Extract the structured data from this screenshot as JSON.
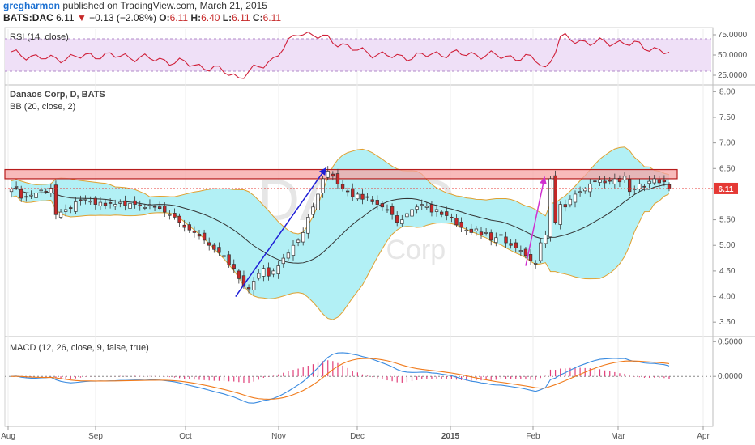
{
  "header": {
    "author": "gregharmon",
    "published_text": "published on TradingView.com, March 21, 2015",
    "symbol": "BATS:DAC",
    "last": "6.11",
    "change": "−0.13 (−2.08%)",
    "open_label": "O:",
    "open": "6.11",
    "high_label": "H:",
    "high": "6.40",
    "low_label": "L:",
    "low": "6.11",
    "close_label": "C:",
    "close": "6.11"
  },
  "panes": {
    "rsi_title": "RSI (14, close)",
    "price_title": "Danaos Corp, D, BATS",
    "bb_title": "BB (20, close, 2)",
    "macd_title": "MACD (12, 26, close, 9, false, true)",
    "watermark_symbol": "DAC, D",
    "watermark_name": "Danaos Corp"
  },
  "colors": {
    "up_candle": "#ffffff",
    "down_candle": "#c62828",
    "bb_fill": "#b2f0f5",
    "bb_band": "#e0a030",
    "bb_mid": "#333333",
    "rsi_line": "#d0203a",
    "rsi_band": "#efe0f7",
    "macd_line": "#3a8be0",
    "signal_line": "#f07a1a",
    "histogram": "#e0407a",
    "resistance_zone": "#f5a3a3",
    "arrow1": "#1f1fd6",
    "arrow2": "#d030d0",
    "last_price_tag": "#e53935"
  },
  "chart_data": [
    {
      "type": "line",
      "name": "RSI",
      "y_ticks": [
        "75.0000",
        "50.0000",
        "25.0000"
      ],
      "ylim": [
        15,
        82
      ],
      "band": [
        30,
        70
      ],
      "x": [
        "2014-08-01",
        "2014-08-15",
        "2014-09-01",
        "2014-09-15",
        "2014-10-01",
        "2014-10-15",
        "2014-10-20",
        "2014-11-01",
        "2014-11-10",
        "2014-11-20",
        "2014-12-01",
        "2014-12-15",
        "2015-01-01",
        "2015-01-15",
        "2015-02-01",
        "2015-02-05",
        "2015-02-10",
        "2015-02-20",
        "2015-03-01",
        "2015-03-10",
        "2015-03-20"
      ],
      "values": [
        52,
        45,
        50,
        47,
        40,
        30,
        22,
        45,
        79,
        70,
        55,
        47,
        52,
        50,
        45,
        32,
        72,
        65,
        66,
        62,
        52
      ]
    },
    {
      "type": "candlestick",
      "name": "Danaos Corp",
      "y_ticks": [
        "8.00",
        "7.50",
        "7.00",
        "6.50",
        "6.00",
        "5.50",
        "5.00",
        "4.50",
        "4.00",
        "3.50"
      ],
      "ylim": [
        3.25,
        8.1
      ],
      "x_ticks": [
        "Aug",
        "Sep",
        "Oct",
        "Nov",
        "Dec",
        "2015",
        "Feb",
        "Mar",
        "Apr"
      ],
      "last_price": "6.11",
      "resistance_zone": [
        6.3,
        6.48
      ],
      "close": [
        6.1,
        6.15,
        5.92,
        5.95,
        5.98,
        6.02,
        6.08,
        6.05,
        6.12,
        5.6,
        5.65,
        5.7,
        5.72,
        5.85,
        5.88,
        5.9,
        5.86,
        5.8,
        5.84,
        5.78,
        5.82,
        5.8,
        5.84,
        5.78,
        5.82,
        5.8,
        5.77,
        5.74,
        5.8,
        5.76,
        5.72,
        5.65,
        5.6,
        5.55,
        5.45,
        5.35,
        5.3,
        5.25,
        5.18,
        5.1,
        5.0,
        4.92,
        4.86,
        4.78,
        4.62,
        4.55,
        4.35,
        4.2,
        4.15,
        4.3,
        4.45,
        4.55,
        4.4,
        4.5,
        4.6,
        4.75,
        4.85,
        5.0,
        5.1,
        5.25,
        5.55,
        5.75,
        6.0,
        6.3,
        6.45,
        6.35,
        6.2,
        6.1,
        6.05,
        5.95,
        6.0,
        5.9,
        5.95,
        5.85,
        5.8,
        5.75,
        5.7,
        5.6,
        5.45,
        5.5,
        5.62,
        5.7,
        5.75,
        5.8,
        5.76,
        5.65,
        5.7,
        5.6,
        5.58,
        5.55,
        5.4,
        5.35,
        5.3,
        5.25,
        5.32,
        5.2,
        5.25,
        5.1,
        5.15,
        5.2,
        5.05,
        5.0,
        4.95,
        4.9,
        4.8,
        4.7,
        4.65,
        5.05,
        5.2,
        6.3,
        5.45,
        5.8,
        5.75,
        5.9,
        6.0,
        6.05,
        6.1,
        6.2,
        6.25,
        6.28,
        6.22,
        6.25,
        6.3,
        6.24,
        6.35,
        6.05,
        6.1,
        6.2,
        6.15,
        6.25,
        6.3,
        6.22,
        6.24,
        6.11
      ]
    },
    {
      "type": "line",
      "name": "MACD",
      "y_ticks": [
        "0.5000",
        "0.0000"
      ],
      "ylim": [
        -0.72,
        0.55
      ]
    }
  ]
}
